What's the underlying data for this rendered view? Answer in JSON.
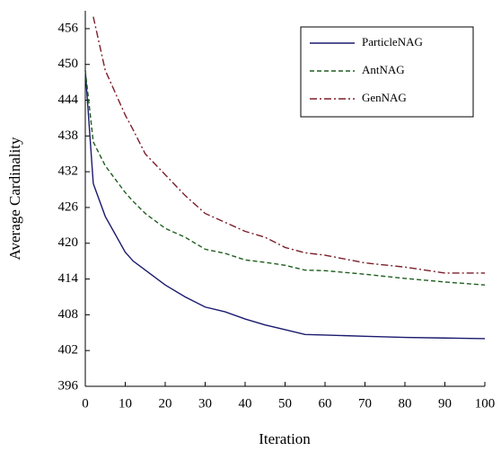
{
  "chart_data": {
    "type": "line",
    "xlabel": "Iteration",
    "ylabel": "Average Cardinality",
    "x": [
      0,
      2,
      5,
      10,
      12,
      15,
      20,
      25,
      30,
      35,
      40,
      45,
      50,
      55,
      60,
      70,
      80,
      90,
      100
    ],
    "series": [
      {
        "name": "ParticleNAG",
        "color": "#1a1a6e",
        "dash": "solid",
        "values": [
          449,
          430,
          424.5,
          418.5,
          417,
          415.5,
          413,
          411,
          409.3,
          408.5,
          407.3,
          406.3,
          405.5,
          404.7,
          404.6,
          404.4,
          404.2,
          404.1,
          404
        ]
      },
      {
        "name": "AntNAG",
        "color": "#1e5e1e",
        "dash": "dashed",
        "values": [
          449,
          437,
          433,
          428.5,
          427,
          425,
          422.5,
          421,
          419,
          418.3,
          417.2,
          416.8,
          416.3,
          415.5,
          415.4,
          414.8,
          414.1,
          413.5,
          413
        ]
      },
      {
        "name": "GenNAG",
        "color": "#7a1f2a",
        "dash": "dashdot",
        "values": [
          null,
          458,
          449,
          441.5,
          439,
          435,
          431.5,
          428,
          425,
          423.5,
          422,
          421,
          419.3,
          418.4,
          418,
          416.7,
          416,
          415,
          415
        ]
      }
    ],
    "xlim": [
      0,
      100
    ],
    "xticks": [
      0,
      10,
      20,
      30,
      40,
      50,
      60,
      70,
      80,
      90,
      100
    ],
    "ylim": [
      396,
      459
    ],
    "yticks": [
      396,
      402,
      408,
      414,
      420,
      426,
      432,
      438,
      444,
      450,
      456
    ],
    "legend": "upper right"
  }
}
